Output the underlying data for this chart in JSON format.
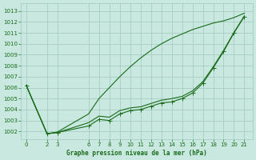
{
  "title": "Graphe pression niveau de la mer (hPa)",
  "bg_color": "#c8e8e0",
  "grid_color": "#a0c8c0",
  "line_color": "#1a6b1a",
  "x_ticks": [
    0,
    2,
    3,
    6,
    7,
    8,
    9,
    10,
    11,
    12,
    13,
    14,
    15,
    16,
    17,
    18,
    19,
    20,
    21
  ],
  "ylim": [
    1001.3,
    1013.7
  ],
  "xlim": [
    -0.5,
    21.8
  ],
  "yticks": [
    1002,
    1003,
    1004,
    1005,
    1006,
    1007,
    1008,
    1009,
    1010,
    1011,
    1012,
    1013
  ],
  "curve1_x": [
    0,
    2,
    3,
    6,
    7,
    8,
    9,
    10,
    11,
    12,
    13,
    14,
    15,
    16,
    17,
    18,
    19,
    20,
    21
  ],
  "curve1_y": [
    1006.2,
    1001.8,
    1001.9,
    1002.5,
    1003.1,
    1003.0,
    1003.6,
    1003.9,
    1004.0,
    1004.3,
    1004.6,
    1004.7,
    1005.0,
    1005.5,
    1006.4,
    1007.8,
    1009.3,
    1011.0,
    1012.5
  ],
  "curve2_x": [
    0,
    2,
    3,
    6,
    7,
    8,
    9,
    10,
    11,
    12,
    13,
    14,
    15,
    16,
    17,
    18,
    19,
    20,
    21
  ],
  "curve2_y": [
    1006.2,
    1001.8,
    1001.95,
    1003.6,
    1005.0,
    1006.0,
    1007.0,
    1007.9,
    1008.7,
    1009.4,
    1010.0,
    1010.5,
    1010.9,
    1011.3,
    1011.6,
    1011.9,
    1012.1,
    1012.4,
    1012.8
  ],
  "curve3_x": [
    0,
    2,
    3,
    6,
    7,
    8,
    9,
    10,
    11,
    12,
    13,
    14,
    15,
    16,
    17,
    18,
    19,
    20,
    21
  ],
  "curve3_y": [
    1006.2,
    1001.8,
    1001.9,
    1002.8,
    1003.4,
    1003.3,
    1003.9,
    1004.15,
    1004.25,
    1004.55,
    1004.85,
    1005.0,
    1005.2,
    1005.7,
    1006.55,
    1007.9,
    1009.4,
    1011.05,
    1012.55
  ]
}
